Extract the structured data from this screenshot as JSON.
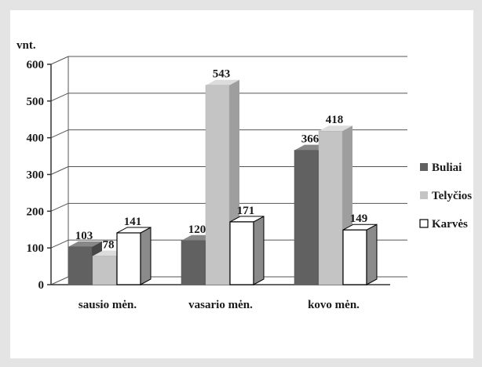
{
  "chart_data": {
    "type": "bar",
    "title": "",
    "xlabel": "",
    "ylabel": "vnt.",
    "ylim": [
      0,
      600
    ],
    "yticks": [
      0,
      100,
      200,
      300,
      400,
      500,
      600
    ],
    "grid": true,
    "legend_position": "right",
    "categories": [
      "sausio mėn.",
      "vasario mėn.",
      "kovo mėn."
    ],
    "series": [
      {
        "name": "Buliai",
        "values": [
          103,
          120,
          366
        ],
        "color": "#616161"
      },
      {
        "name": "Telyčios",
        "values": [
          78,
          543,
          418
        ],
        "color": "#c4c4c4"
      },
      {
        "name": "Karvės",
        "values": [
          141,
          171,
          149
        ],
        "color": "#ffffff"
      }
    ]
  }
}
